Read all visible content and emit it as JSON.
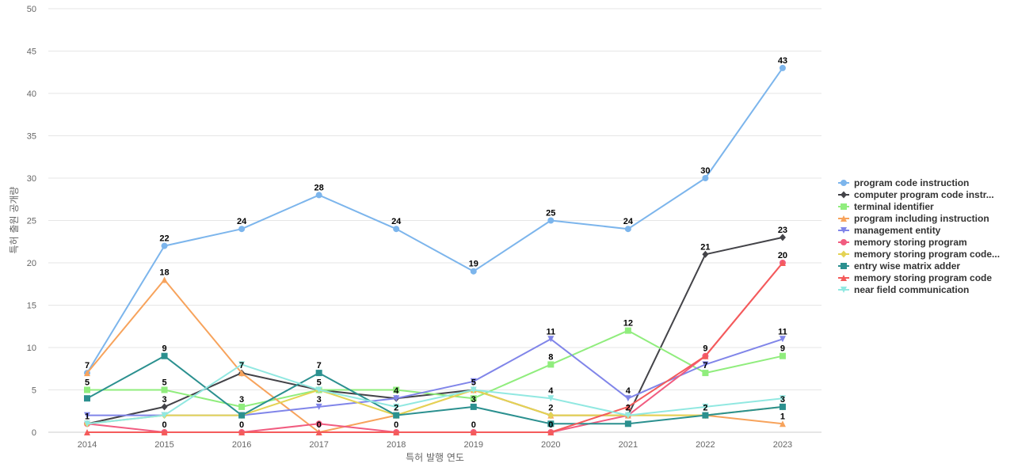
{
  "chart_data": {
    "type": "line",
    "xlabel": "특허 발행 연도",
    "ylabel": "특허 출원 공개량",
    "ylim": [
      0,
      50
    ],
    "yticks": [
      0,
      5,
      10,
      15,
      20,
      25,
      30,
      35,
      40,
      45,
      50
    ],
    "grid": true,
    "legend_position": "right",
    "x": [
      "2014",
      "2015",
      "2016",
      "2017",
      "2018",
      "2019",
      "2020",
      "2021",
      "2022",
      "2023"
    ],
    "series": [
      {
        "name": "program code instruction",
        "color": "#7cb5ec",
        "marker": "circle",
        "values": [
          7,
          22,
          24,
          28,
          24,
          19,
          25,
          24,
          30,
          43
        ]
      },
      {
        "name": "computer program code instr...",
        "color": "#434348",
        "marker": "diamond",
        "values": [
          1,
          3,
          7,
          5,
          4,
          5,
          2,
          2,
          21,
          23
        ]
      },
      {
        "name": "terminal identifier",
        "color": "#90ed7d",
        "marker": "square",
        "values": [
          5,
          5,
          3,
          5,
          5,
          4,
          8,
          12,
          7,
          9
        ]
      },
      {
        "name": "program including instruction",
        "color": "#f7a35c",
        "marker": "triangle",
        "values": [
          7,
          18,
          7,
          0,
          2,
          5,
          2,
          2,
          2,
          1
        ]
      },
      {
        "name": "management entity",
        "color": "#8085e9",
        "marker": "triangle-down",
        "values": [
          2,
          2,
          2,
          3,
          4,
          6,
          11,
          4,
          8,
          11
        ]
      },
      {
        "name": "memory storing program",
        "color": "#f15c80",
        "marker": "circle",
        "values": [
          1,
          0,
          0,
          1,
          0,
          0,
          0,
          2,
          9,
          20
        ]
      },
      {
        "name": "memory storing program code...",
        "color": "#e4d354",
        "marker": "diamond",
        "values": [
          1,
          2,
          2,
          5,
          2,
          5,
          2,
          2,
          2,
          3
        ]
      },
      {
        "name": "entry wise matrix adder",
        "color": "#2b908f",
        "marker": "square",
        "values": [
          4,
          9,
          2,
          7,
          2,
          3,
          1,
          1,
          2,
          3
        ]
      },
      {
        "name": "memory storing program code",
        "color": "#f45b5b",
        "marker": "triangle",
        "values": [
          0,
          0,
          0,
          0,
          0,
          0,
          0,
          3,
          9,
          20
        ]
      },
      {
        "name": "near field communication",
        "color": "#91e8e1",
        "marker": "triangle-down",
        "values": [
          1,
          2,
          8,
          5,
          3,
          5,
          4,
          2,
          3,
          4
        ]
      }
    ],
    "data_labels": [
      {
        "x": "2014",
        "y": 7,
        "text": "7"
      },
      {
        "x": "2014",
        "y": 5,
        "text": "5"
      },
      {
        "x": "2014",
        "y": 1,
        "text": "1"
      },
      {
        "x": "2015",
        "y": 22,
        "text": "22"
      },
      {
        "x": "2015",
        "y": 18,
        "text": "18"
      },
      {
        "x": "2015",
        "y": 9,
        "text": "9"
      },
      {
        "x": "2015",
        "y": 5,
        "text": "5"
      },
      {
        "x": "2015",
        "y": 3,
        "text": "3"
      },
      {
        "x": "2015",
        "y": 0,
        "text": "0"
      },
      {
        "x": "2016",
        "y": 24,
        "text": "24"
      },
      {
        "x": "2016",
        "y": 7,
        "text": "7"
      },
      {
        "x": "2016",
        "y": 3,
        "text": "3"
      },
      {
        "x": "2016",
        "y": 0,
        "text": "0"
      },
      {
        "x": "2017",
        "y": 28,
        "text": "28"
      },
      {
        "x": "2017",
        "y": 7,
        "text": "7"
      },
      {
        "x": "2017",
        "y": 5,
        "text": "5"
      },
      {
        "x": "2017",
        "y": 3,
        "text": "3"
      },
      {
        "x": "2017",
        "y": 0,
        "text": "0"
      },
      {
        "x": "2018",
        "y": 24,
        "text": "24"
      },
      {
        "x": "2018",
        "y": 4,
        "text": "4"
      },
      {
        "x": "2018",
        "y": 2,
        "text": "2"
      },
      {
        "x": "2018",
        "y": 0,
        "text": "0"
      },
      {
        "x": "2019",
        "y": 19,
        "text": "19"
      },
      {
        "x": "2019",
        "y": 5,
        "text": "5"
      },
      {
        "x": "2019",
        "y": 3,
        "text": "3"
      },
      {
        "x": "2019",
        "y": 0,
        "text": "0"
      },
      {
        "x": "2020",
        "y": 25,
        "text": "25"
      },
      {
        "x": "2020",
        "y": 11,
        "text": "11"
      },
      {
        "x": "2020",
        "y": 8,
        "text": "8"
      },
      {
        "x": "2020",
        "y": 4,
        "text": "4"
      },
      {
        "x": "2020",
        "y": 2,
        "text": "2"
      },
      {
        "x": "2020",
        "y": 0,
        "text": "0"
      },
      {
        "x": "2021",
        "y": 24,
        "text": "24"
      },
      {
        "x": "2021",
        "y": 12,
        "text": "12"
      },
      {
        "x": "2021",
        "y": 4,
        "text": "4"
      },
      {
        "x": "2021",
        "y": 2,
        "text": "2"
      },
      {
        "x": "2022",
        "y": 30,
        "text": "30"
      },
      {
        "x": "2022",
        "y": 21,
        "text": "21"
      },
      {
        "x": "2022",
        "y": 9,
        "text": "9"
      },
      {
        "x": "2022",
        "y": 7,
        "text": "7"
      },
      {
        "x": "2022",
        "y": 2,
        "text": "2"
      },
      {
        "x": "2023",
        "y": 43,
        "text": "43"
      },
      {
        "x": "2023",
        "y": 23,
        "text": "23"
      },
      {
        "x": "2023",
        "y": 20,
        "text": "20"
      },
      {
        "x": "2023",
        "y": 11,
        "text": "11"
      },
      {
        "x": "2023",
        "y": 9,
        "text": "9"
      },
      {
        "x": "2023",
        "y": 3,
        "text": "3"
      },
      {
        "x": "2023",
        "y": 1,
        "text": "1"
      }
    ]
  }
}
